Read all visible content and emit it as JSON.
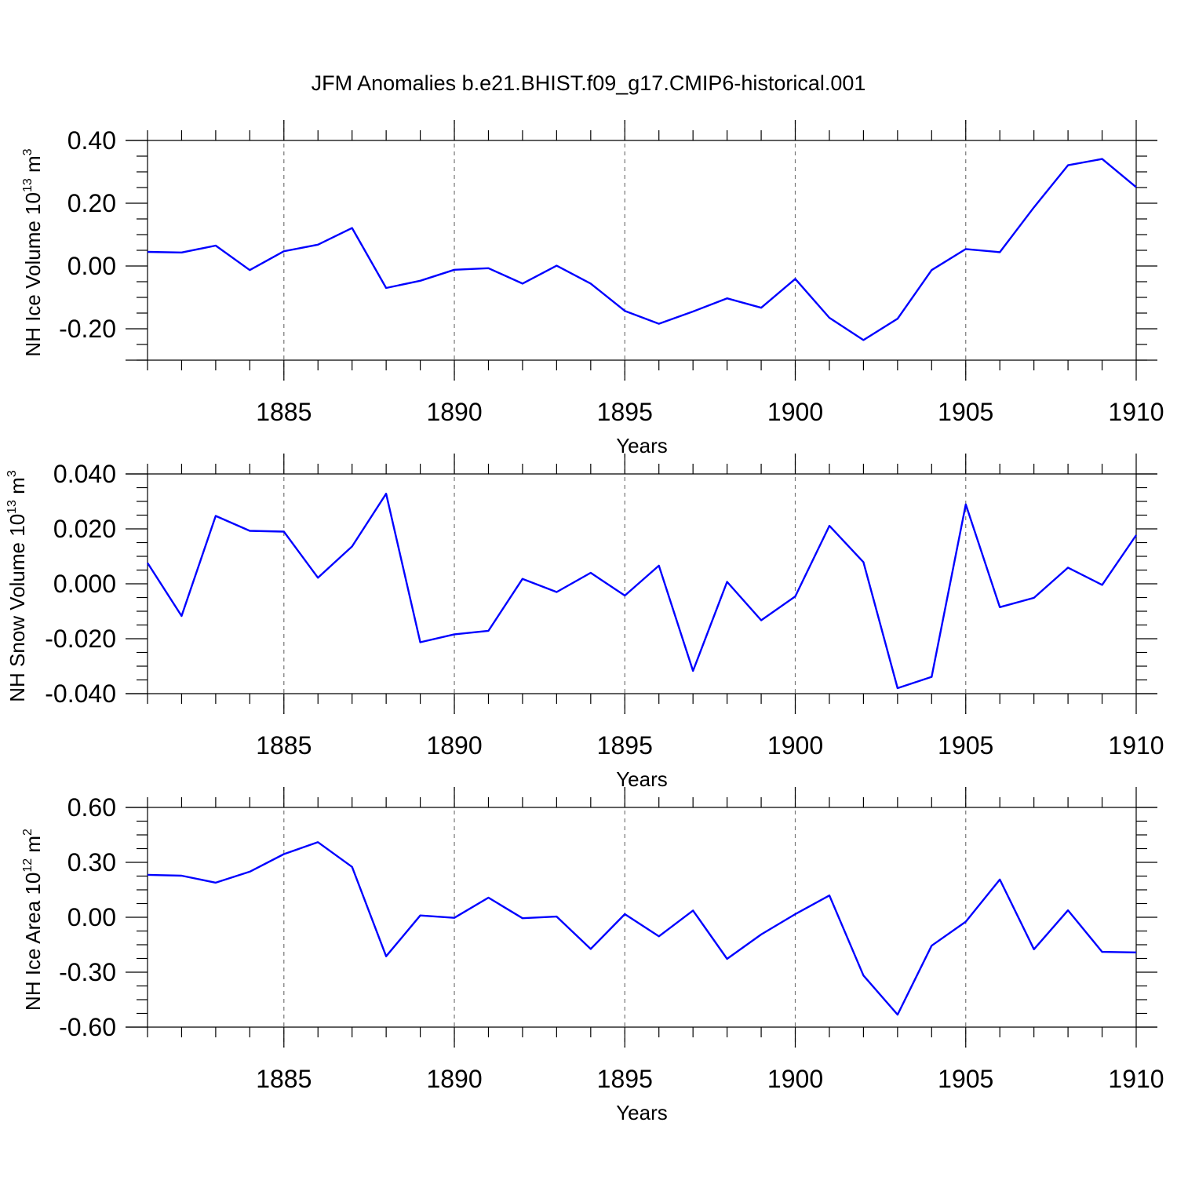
{
  "title": "JFM Anomalies b.e21.BHIST.f09_g17.CMIP6-historical.001",
  "colors": {
    "series": "#0000ff",
    "axis": "#000000",
    "grid": "#777777"
  },
  "chart_data": [
    {
      "type": "line",
      "ylabel": "NH Ice Volume 10",
      "ylabel_exponent": "13",
      "ylabel_unit": "m",
      "ylabel_unit_exponent": "3",
      "xlabel": "Years",
      "xlim": [
        1881,
        1910
      ],
      "ylim": [
        -0.3,
        0.4
      ],
      "y_ticks": [
        -0.2,
        0.0,
        0.2,
        0.4
      ],
      "y_tick_labels": [
        "-0.20",
        "0.00",
        "0.20",
        "0.40"
      ],
      "x_ticks": [
        1885,
        1890,
        1895,
        1900,
        1905,
        1910
      ],
      "x_tick_labels": [
        "1885",
        "1890",
        "1895",
        "1900",
        "1905",
        "1910"
      ],
      "grid": "vertical dashed at major x ticks",
      "x": [
        1881,
        1882,
        1883,
        1884,
        1885,
        1886,
        1887,
        1888,
        1889,
        1890,
        1891,
        1892,
        1893,
        1894,
        1895,
        1896,
        1897,
        1898,
        1899,
        1900,
        1901,
        1902,
        1903,
        1904,
        1905,
        1906,
        1907,
        1908,
        1909,
        1910
      ],
      "values": [
        0.045,
        0.043,
        0.065,
        -0.013,
        0.047,
        0.068,
        0.121,
        -0.07,
        -0.047,
        -0.012,
        -0.007,
        -0.056,
        0.001,
        -0.056,
        -0.143,
        -0.184,
        -0.145,
        -0.103,
        -0.133,
        -0.041,
        -0.165,
        -0.236,
        -0.168,
        -0.013,
        0.054,
        0.044,
        0.187,
        0.321,
        0.341,
        0.251
      ]
    },
    {
      "type": "line",
      "ylabel": "NH Snow Volume 10",
      "ylabel_exponent": "13",
      "ylabel_unit": "m",
      "ylabel_unit_exponent": "3",
      "xlabel": "Years",
      "xlim": [
        1881,
        1910
      ],
      "ylim": [
        -0.04,
        0.04
      ],
      "y_ticks": [
        -0.04,
        -0.02,
        0.0,
        0.02,
        0.04
      ],
      "y_tick_labels": [
        "-0.040",
        "-0.020",
        "0.000",
        "0.020",
        "0.040"
      ],
      "x_ticks": [
        1885,
        1890,
        1895,
        1900,
        1905,
        1910
      ],
      "x_tick_labels": [
        "1885",
        "1890",
        "1895",
        "1900",
        "1905",
        "1910"
      ],
      "grid": "vertical dashed at major x ticks",
      "x": [
        1881,
        1882,
        1883,
        1884,
        1885,
        1886,
        1887,
        1888,
        1889,
        1890,
        1891,
        1892,
        1893,
        1894,
        1895,
        1896,
        1897,
        1898,
        1899,
        1900,
        1901,
        1902,
        1903,
        1904,
        1905,
        1906,
        1907,
        1908,
        1909,
        1910
      ],
      "values": [
        0.0076,
        -0.0117,
        0.0247,
        0.0193,
        0.019,
        0.0022,
        0.0136,
        0.0328,
        -0.0213,
        -0.0184,
        -0.0171,
        0.0018,
        -0.003,
        0.004,
        -0.0043,
        0.0066,
        -0.0317,
        0.0007,
        -0.0133,
        -0.0046,
        0.0211,
        0.0079,
        -0.038,
        -0.0339,
        0.0289,
        -0.0085,
        -0.0051,
        0.0059,
        -0.0004,
        0.0177
      ]
    },
    {
      "type": "line",
      "ylabel": "NH Ice Area 10",
      "ylabel_exponent": "12",
      "ylabel_unit": "m",
      "ylabel_unit_exponent": "2",
      "xlabel": "Years",
      "xlim": [
        1881,
        1910
      ],
      "ylim": [
        -0.6,
        0.6
      ],
      "y_ticks": [
        -0.6,
        -0.3,
        0.0,
        0.3,
        0.6
      ],
      "y_tick_labels": [
        "-0.60",
        "-0.30",
        "0.00",
        "0.30",
        "0.60"
      ],
      "x_ticks": [
        1885,
        1890,
        1895,
        1900,
        1905,
        1910
      ],
      "x_tick_labels": [
        "1885",
        "1890",
        "1895",
        "1900",
        "1905",
        "1910"
      ],
      "grid": "vertical dashed at major x ticks",
      "x": [
        1881,
        1882,
        1883,
        1884,
        1885,
        1886,
        1887,
        1888,
        1889,
        1890,
        1891,
        1892,
        1893,
        1894,
        1895,
        1896,
        1897,
        1898,
        1899,
        1900,
        1901,
        1902,
        1903,
        1904,
        1905,
        1906,
        1907,
        1908,
        1909,
        1910
      ],
      "values": [
        0.232,
        0.227,
        0.189,
        0.249,
        0.345,
        0.41,
        0.275,
        -0.213,
        0.01,
        -0.003,
        0.107,
        -0.005,
        0.004,
        -0.173,
        0.017,
        -0.104,
        0.037,
        -0.227,
        -0.094,
        0.017,
        0.119,
        -0.318,
        -0.532,
        -0.155,
        -0.024,
        0.206,
        -0.175,
        0.038,
        -0.189,
        -0.192
      ]
    }
  ]
}
